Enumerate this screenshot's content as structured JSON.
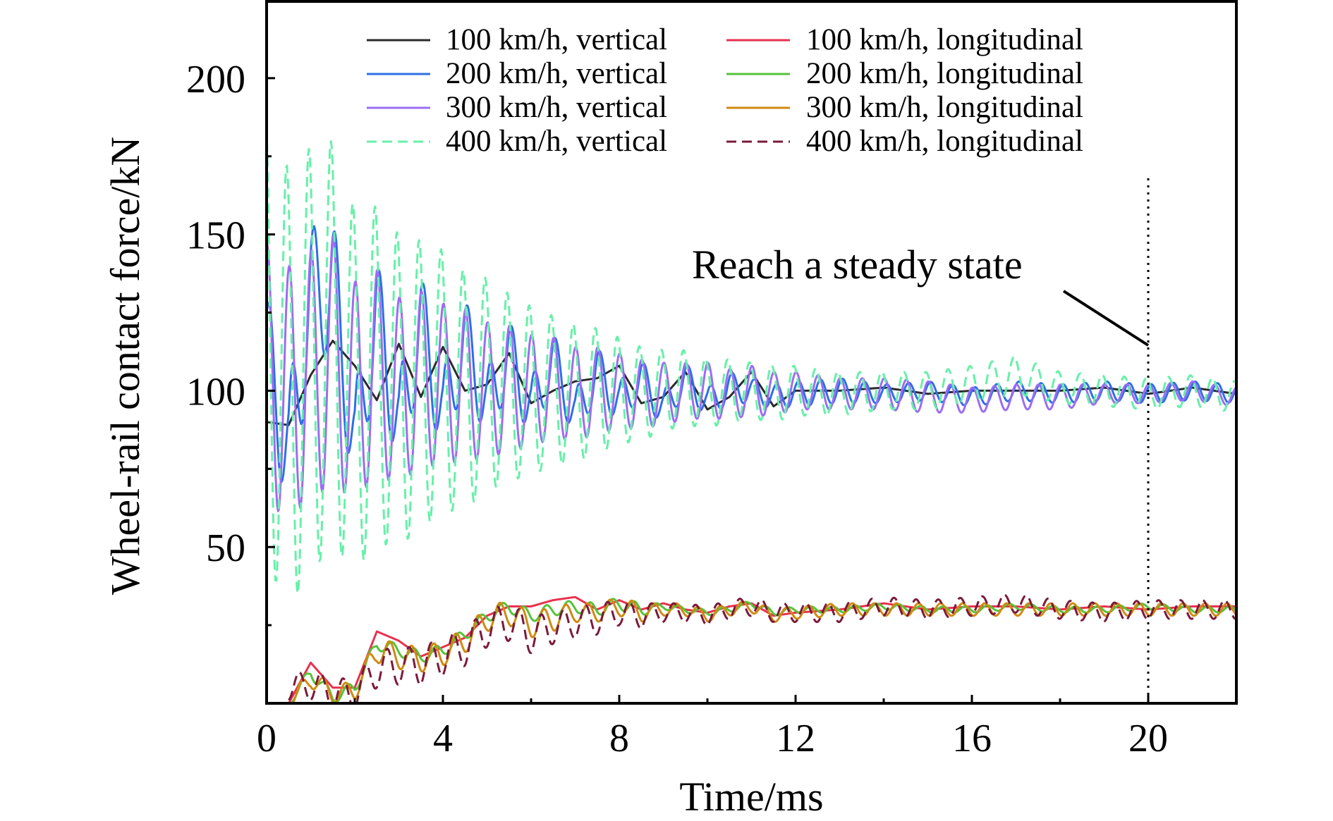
{
  "chart_data": {
    "type": "line",
    "title": "",
    "xlabel": "Time/ms",
    "ylabel": "Wheel-rail contact force/kN",
    "xlim": [
      0,
      22
    ],
    "ylim": [
      0,
      225
    ],
    "x_ticks": [
      0,
      4,
      8,
      12,
      16,
      20
    ],
    "x_tick_labels": [
      "0",
      "4",
      "8",
      "12",
      "16",
      "20"
    ],
    "y_ticks": [
      50,
      100,
      150,
      200
    ],
    "y_tick_labels": [
      "50",
      "100",
      "150",
      "200"
    ],
    "x_minor_step": 2,
    "y_minor_step": 25,
    "grid": false,
    "legend_position": "top",
    "annotation": {
      "text": "Reach a steady state",
      "x": 20,
      "marker_line": "dotted vertical"
    },
    "series": [
      {
        "name": "100 km/h, vertical",
        "color": "#2b2b2b",
        "dash": "solid",
        "x": [
          0,
          0.5,
          1.0,
          1.5,
          2.0,
          2.5,
          3.0,
          3.5,
          4.0,
          4.5,
          5.0,
          5.5,
          6.0,
          6.5,
          7.0,
          7.5,
          8.0,
          8.5,
          9.0,
          9.5,
          10.0,
          10.5,
          11.0,
          11.5,
          12.0,
          13.0,
          14.0,
          15.0,
          16.0,
          17.0,
          18.0,
          19.0,
          20.0,
          21.0,
          22.0
        ],
        "y": [
          90,
          89,
          105,
          116,
          108,
          97,
          115,
          98,
          114,
          100,
          102,
          112,
          96,
          100,
          103,
          104,
          108,
          96,
          98,
          106,
          94,
          98,
          106,
          95,
          100,
          100,
          101,
          99,
          100,
          100,
          100,
          101,
          99,
          101,
          99
        ]
      },
      {
        "name": "200 km/h, vertical",
        "color": "#2e6fe8",
        "dash": "solid",
        "x": [
          0,
          0.5,
          1.0,
          1.5,
          2.0,
          2.5,
          3.0,
          3.5,
          4.0,
          4.5,
          5.0,
          5.5,
          6.0,
          6.5,
          7.0,
          7.5,
          8.0,
          8.5,
          9.0,
          9.5,
          10.0,
          10.5,
          11.0,
          11.5,
          12.0,
          13.0,
          14.0,
          15.0,
          16.0,
          17.0,
          18.0,
          19.0,
          20.0,
          21.0,
          22.0
        ],
        "y": [
          112,
          80,
          130,
          135,
          82,
          125,
          88,
          122,
          92,
          117,
          95,
          112,
          94,
          110,
          92,
          106,
          96,
          104,
          94,
          104,
          96,
          101,
          100,
          98,
          99,
          100,
          99,
          100,
          98,
          100,
          99,
          100,
          99,
          100,
          99
        ],
        "amp": [
          20,
          20,
          22,
          22,
          18,
          18,
          16,
          16,
          14,
          13,
          12,
          11,
          10,
          9,
          8,
          8,
          7,
          6,
          6,
          5,
          5,
          5,
          4,
          4,
          4,
          4,
          3,
          3,
          3,
          3,
          3,
          3,
          3,
          3,
          3
        ]
      },
      {
        "name": "300 km/h, vertical",
        "color": "#9b6df2",
        "dash": "solid",
        "x": [
          0,
          0.5,
          1.0,
          1.5,
          2.0,
          2.5,
          3.0,
          3.5,
          4.0,
          4.5,
          5.0,
          5.5,
          6.0,
          6.5,
          7.0,
          7.5,
          8.0,
          8.5,
          9.0,
          9.5,
          10.0,
          10.5,
          11.0,
          11.5,
          12.0,
          13.0,
          14.0,
          15.0,
          16.0,
          17.0,
          18.0,
          19.0,
          20.0,
          21.0,
          22.0
        ],
        "y": [
          105,
          100,
          105,
          110,
          100,
          106,
          100,
          104,
          102,
          102,
          100,
          101,
          100,
          101,
          99,
          100,
          100,
          99,
          99,
          100,
          100,
          99,
          100,
          99,
          100,
          99,
          99,
          98,
          97,
          98,
          98,
          99,
          99,
          100,
          98
        ],
        "amp": [
          42,
          40,
          40,
          40,
          35,
          33,
          30,
          28,
          26,
          24,
          22,
          20,
          18,
          16,
          15,
          14,
          12,
          11,
          10,
          9,
          9,
          8,
          8,
          7,
          6,
          5,
          5,
          5,
          4,
          4,
          4,
          3,
          3,
          3,
          3
        ]
      },
      {
        "name": "400 km/h, vertical",
        "color": "#66f0a8",
        "dash": "dashed",
        "x": [
          0,
          0.5,
          1.0,
          1.5,
          2.0,
          2.5,
          3.0,
          3.5,
          4.0,
          4.5,
          5.0,
          5.5,
          6.0,
          6.5,
          7.0,
          7.5,
          8.0,
          8.5,
          9.0,
          9.5,
          10.0,
          10.5,
          11.0,
          11.5,
          12.0,
          13.0,
          14.0,
          15.0,
          16.0,
          17.0,
          18.0,
          19.0,
          20.0,
          21.0,
          22.0
        ],
        "y": [
          120,
          100,
          110,
          115,
          100,
          105,
          100,
          102,
          103,
          100,
          102,
          101,
          100,
          100,
          99,
          100,
          100,
          99,
          100,
          101,
          99,
          100,
          100,
          99,
          100,
          99,
          100,
          100,
          102,
          105,
          101,
          100,
          99,
          100,
          98
        ],
        "amp": [
          75,
          70,
          68,
          65,
          58,
          54,
          50,
          46,
          42,
          38,
          34,
          30,
          27,
          24,
          22,
          20,
          17,
          15,
          13,
          12,
          11,
          10,
          9,
          9,
          8,
          7,
          6,
          6,
          6,
          6,
          5,
          5,
          5,
          5,
          5
        ]
      },
      {
        "name": "100 km/h, longitudinal",
        "color": "#e8314f",
        "dash": "solid",
        "x": [
          0.5,
          1.0,
          1.5,
          2.0,
          2.5,
          3.0,
          3.5,
          4.0,
          4.5,
          5.0,
          5.5,
          6.0,
          6.5,
          7.0,
          7.5,
          8.0,
          8.5,
          9.0,
          9.5,
          10.0,
          10.5,
          11.0,
          11.5,
          12.0,
          13.0,
          14.0,
          15.0,
          16.0,
          17.0,
          18.0,
          19.0,
          20.0,
          21.0,
          22.0
        ],
        "y": [
          0,
          13,
          5,
          5,
          23,
          20,
          15,
          18,
          21,
          28,
          31,
          31,
          33,
          34,
          30,
          33,
          30,
          32,
          30,
          29,
          31,
          32,
          28,
          29,
          30,
          32,
          30,
          31,
          31,
          30,
          31,
          30,
          31,
          31
        ]
      },
      {
        "name": "200 km/h, longitudinal",
        "color": "#55c23a",
        "dash": "solid",
        "x": [
          0.5,
          1.0,
          1.5,
          2.0,
          2.5,
          3.0,
          3.5,
          4.0,
          4.5,
          5.0,
          5.5,
          6.0,
          6.5,
          7.0,
          7.5,
          8.0,
          8.5,
          9.0,
          9.5,
          10.0,
          10.5,
          11.0,
          11.5,
          12.0,
          13.0,
          14.0,
          15.0,
          16.0,
          17.0,
          18.0,
          19.0,
          20.0,
          21.0,
          22.0
        ],
        "y": [
          0,
          10,
          2,
          5,
          19,
          17,
          15,
          17,
          22,
          28,
          31,
          28,
          30,
          31,
          30,
          32,
          30,
          31,
          30,
          29,
          30,
          32,
          29,
          30,
          30,
          31,
          30,
          30,
          31,
          30,
          30,
          31,
          30,
          30
        ],
        "amp": [
          1,
          2,
          2,
          2,
          2,
          2,
          2,
          2,
          2,
          2,
          2,
          2,
          2,
          2,
          2,
          2,
          2,
          1,
          1,
          1,
          1,
          1,
          1,
          1,
          1,
          1,
          1,
          1,
          1,
          1,
          1,
          1,
          1,
          1
        ]
      },
      {
        "name": "300 km/h, longitudinal",
        "color": "#d08a12",
        "dash": "solid",
        "x": [
          0.5,
          1.0,
          1.5,
          2.0,
          2.5,
          3.0,
          3.5,
          4.0,
          4.5,
          5.0,
          5.5,
          6.0,
          6.5,
          7.0,
          7.5,
          8.0,
          8.5,
          9.0,
          9.5,
          10.0,
          10.5,
          11.0,
          11.5,
          12.0,
          13.0,
          14.0,
          15.0,
          16.0,
          17.0,
          18.0,
          19.0,
          20.0,
          21.0,
          22.0
        ],
        "y": [
          0,
          8,
          3,
          4,
          17,
          15,
          14,
          16,
          20,
          27,
          29,
          25,
          27,
          29,
          29,
          31,
          29,
          30,
          30,
          28,
          30,
          31,
          28,
          29,
          30,
          30,
          30,
          30,
          30,
          30,
          30,
          30,
          30,
          30
        ],
        "amp": [
          2,
          3,
          3,
          3,
          4,
          4,
          4,
          4,
          4,
          4,
          4,
          4,
          4,
          3,
          3,
          3,
          3,
          2,
          2,
          2,
          2,
          2,
          2,
          2,
          2,
          2,
          2,
          2,
          2,
          2,
          2,
          2,
          2,
          2
        ]
      },
      {
        "name": "400 km/h, longitudinal",
        "color": "#7a1a3a",
        "dash": "dashed",
        "x": [
          0.5,
          1.0,
          1.5,
          2.0,
          2.5,
          3.0,
          3.5,
          4.0,
          4.5,
          5.0,
          5.5,
          6.0,
          6.5,
          7.0,
          7.5,
          8.0,
          8.5,
          9.0,
          9.5,
          10.0,
          10.5,
          11.0,
          11.5,
          12.0,
          13.0,
          14.0,
          15.0,
          16.0,
          17.0,
          18.0,
          19.0,
          20.0,
          21.0,
          22.0
        ],
        "y": [
          5,
          6,
          3,
          3,
          11,
          12,
          12,
          15,
          18,
          24,
          26,
          22,
          24,
          26,
          27,
          29,
          28,
          29,
          29,
          28,
          30,
          31,
          29,
          29,
          29,
          31,
          30,
          31,
          32,
          30,
          29,
          30,
          30,
          30
        ],
        "amp": [
          4,
          5,
          5,
          5,
          6,
          6,
          6,
          6,
          6,
          6,
          6,
          6,
          5,
          5,
          5,
          4,
          4,
          3,
          3,
          3,
          3,
          3,
          3,
          3,
          3,
          3,
          3,
          3,
          3,
          3,
          3,
          3,
          3,
          3
        ]
      }
    ]
  }
}
